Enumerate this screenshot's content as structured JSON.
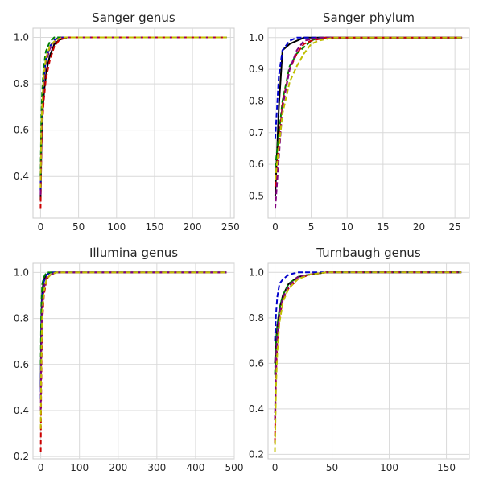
{
  "chart_data": [
    {
      "type": "line",
      "title": "Sanger genus",
      "xlim": [
        -10,
        255
      ],
      "ylim": [
        0.22,
        1.04
      ],
      "xticks": [
        0,
        50,
        100,
        150,
        200,
        250
      ],
      "yticks": [
        0.4,
        0.6,
        0.8,
        1.0
      ],
      "xtick_labels": [
        "0",
        "50",
        "100",
        "150",
        "200",
        "250"
      ],
      "ytick_labels": [
        "0.4",
        "0.6",
        "0.8",
        "1.0"
      ],
      "grid": true,
      "series": [
        {
          "color": "#000000",
          "dash": false,
          "x": [
            0,
            1,
            2,
            3,
            5,
            8,
            12,
            18,
            25,
            35,
            50,
            100,
            245
          ],
          "y": [
            0.3,
            0.52,
            0.62,
            0.7,
            0.78,
            0.86,
            0.92,
            0.97,
            0.99,
            1.0,
            1.0,
            1.0,
            1.0
          ]
        },
        {
          "color": "#0000cc",
          "dash": true,
          "x": [
            0,
            1,
            2,
            4,
            7,
            12,
            18,
            25,
            35,
            245
          ],
          "y": [
            0.34,
            0.6,
            0.7,
            0.82,
            0.9,
            0.96,
            0.99,
            1.0,
            1.0,
            1.0
          ]
        },
        {
          "color": "#008000",
          "dash": true,
          "x": [
            0,
            1,
            2,
            4,
            7,
            12,
            18,
            25,
            245
          ],
          "y": [
            0.4,
            0.66,
            0.76,
            0.87,
            0.94,
            0.98,
            1.0,
            1.0,
            1.0
          ]
        },
        {
          "color": "#cc0000",
          "dash": true,
          "x": [
            0,
            1,
            2,
            4,
            7,
            12,
            18,
            25,
            35,
            245
          ],
          "y": [
            0.26,
            0.5,
            0.6,
            0.72,
            0.82,
            0.9,
            0.96,
            0.99,
            1.0,
            1.0
          ]
        },
        {
          "color": "#800080",
          "dash": true,
          "x": [
            0,
            1,
            2,
            4,
            7,
            12,
            18,
            28,
            245
          ],
          "y": [
            0.32,
            0.56,
            0.67,
            0.8,
            0.89,
            0.95,
            0.98,
            1.0,
            1.0
          ]
        },
        {
          "color": "#bfbf00",
          "dash": true,
          "x": [
            0,
            1,
            2,
            4,
            7,
            12,
            20,
            30,
            245
          ],
          "y": [
            0.35,
            0.6,
            0.7,
            0.83,
            0.91,
            0.96,
            0.99,
            1.0,
            1.0
          ]
        }
      ]
    },
    {
      "type": "line",
      "title": "Sanger phylum",
      "xlim": [
        -1,
        27
      ],
      "ylim": [
        0.43,
        1.03
      ],
      "xticks": [
        0,
        5,
        10,
        15,
        20,
        25
      ],
      "yticks": [
        0.5,
        0.6,
        0.7,
        0.8,
        0.9,
        1.0
      ],
      "xtick_labels": [
        "0",
        "5",
        "10",
        "15",
        "20",
        "25"
      ],
      "ytick_labels": [
        "0.5",
        "0.6",
        "0.7",
        "0.8",
        "0.9",
        "1.0"
      ],
      "grid": true,
      "series": [
        {
          "color": "#000000",
          "dash": false,
          "x": [
            0,
            0.5,
            1,
            2,
            3,
            4,
            5,
            7,
            26
          ],
          "y": [
            0.5,
            0.78,
            0.96,
            0.98,
            0.99,
            1.0,
            1.0,
            1.0,
            1.0
          ]
        },
        {
          "color": "#0000cc",
          "dash": true,
          "x": [
            0,
            0.5,
            1,
            2,
            3,
            5,
            26
          ],
          "y": [
            0.68,
            0.88,
            0.96,
            0.99,
            1.0,
            1.0,
            1.0
          ]
        },
        {
          "color": "#008000",
          "dash": true,
          "x": [
            0,
            1,
            2,
            3,
            4,
            5,
            6,
            26
          ],
          "y": [
            0.59,
            0.8,
            0.91,
            0.95,
            0.97,
            0.99,
            1.0,
            1.0
          ]
        },
        {
          "color": "#cc0000",
          "dash": true,
          "x": [
            0,
            1,
            2,
            3,
            4,
            5,
            7,
            26
          ],
          "y": [
            0.53,
            0.79,
            0.9,
            0.95,
            0.98,
            0.99,
            1.0,
            1.0
          ]
        },
        {
          "color": "#800080",
          "dash": true,
          "x": [
            0,
            0.5,
            1,
            2,
            3,
            4,
            6,
            26
          ],
          "y": [
            0.46,
            0.62,
            0.78,
            0.9,
            0.96,
            0.99,
            1.0,
            1.0
          ]
        },
        {
          "color": "#bfbf00",
          "dash": true,
          "x": [
            0,
            1,
            2,
            3,
            4,
            5,
            6,
            8,
            26
          ],
          "y": [
            0.55,
            0.76,
            0.86,
            0.91,
            0.95,
            0.98,
            0.99,
            1.0,
            1.0
          ]
        }
      ]
    },
    {
      "type": "line",
      "title": "Illumina genus",
      "xlim": [
        -20,
        500
      ],
      "ylim": [
        0.19,
        1.04
      ],
      "xticks": [
        0,
        100,
        200,
        300,
        400,
        500
      ],
      "yticks": [
        0.2,
        0.4,
        0.6,
        0.8,
        1.0
      ],
      "xtick_labels": [
        "0",
        "100",
        "200",
        "300",
        "400",
        "500"
      ],
      "ytick_labels": [
        "0.2",
        "0.4",
        "0.6",
        "0.8",
        "1.0"
      ],
      "grid": true,
      "series": [
        {
          "color": "#000000",
          "dash": false,
          "x": [
            0,
            1,
            2,
            4,
            8,
            15,
            25,
            40,
            480
          ],
          "y": [
            0.5,
            0.72,
            0.82,
            0.92,
            0.97,
            0.99,
            1.0,
            1.0,
            1.0
          ]
        },
        {
          "color": "#0000cc",
          "dash": true,
          "x": [
            0,
            1,
            2,
            4,
            8,
            15,
            25,
            480
          ],
          "y": [
            0.45,
            0.7,
            0.8,
            0.9,
            0.96,
            0.99,
            1.0,
            1.0
          ]
        },
        {
          "color": "#008000",
          "dash": true,
          "x": [
            0,
            1,
            2,
            4,
            8,
            15,
            25,
            480
          ],
          "y": [
            0.6,
            0.8,
            0.88,
            0.95,
            0.98,
            1.0,
            1.0,
            1.0
          ]
        },
        {
          "color": "#cc0000",
          "dash": true,
          "x": [
            0,
            1,
            2,
            4,
            8,
            15,
            25,
            40,
            480
          ],
          "y": [
            0.22,
            0.45,
            0.6,
            0.78,
            0.9,
            0.97,
            0.99,
            1.0,
            1.0
          ]
        },
        {
          "color": "#800080",
          "dash": true,
          "x": [
            0,
            1,
            2,
            4,
            8,
            15,
            25,
            40,
            480
          ],
          "y": [
            0.4,
            0.6,
            0.72,
            0.85,
            0.93,
            0.98,
            0.99,
            1.0,
            1.0
          ]
        },
        {
          "color": "#bfbf00",
          "dash": true,
          "x": [
            0,
            1,
            2,
            4,
            8,
            15,
            25,
            40,
            480
          ],
          "y": [
            0.32,
            0.55,
            0.68,
            0.82,
            0.92,
            0.97,
            0.99,
            1.0,
            1.0
          ]
        }
      ]
    },
    {
      "type": "line",
      "title": "Turnbaugh genus",
      "xlim": [
        -6,
        170
      ],
      "ylim": [
        0.18,
        1.04
      ],
      "xticks": [
        0,
        50,
        100,
        150
      ],
      "yticks": [
        0.2,
        0.4,
        0.6,
        0.8,
        1.0
      ],
      "xtick_labels": [
        "0",
        "50",
        "100",
        "150"
      ],
      "ytick_labels": [
        "0.2",
        "0.4",
        "0.6",
        "0.8",
        "1.0"
      ],
      "grid": true,
      "series": [
        {
          "color": "#000000",
          "dash": false,
          "x": [
            0,
            1,
            2,
            4,
            7,
            12,
            20,
            30,
            45,
            163
          ],
          "y": [
            0.6,
            0.7,
            0.76,
            0.84,
            0.9,
            0.95,
            0.98,
            0.99,
            1.0,
            1.0
          ]
        },
        {
          "color": "#0000cc",
          "dash": true,
          "x": [
            0,
            1,
            2,
            4,
            7,
            12,
            20,
            30,
            163
          ],
          "y": [
            0.7,
            0.82,
            0.89,
            0.95,
            0.97,
            0.99,
            1.0,
            1.0,
            1.0
          ]
        },
        {
          "color": "#008000",
          "dash": true,
          "x": [
            0,
            1,
            2,
            4,
            7,
            12,
            20,
            30,
            45,
            163
          ],
          "y": [
            0.55,
            0.68,
            0.75,
            0.84,
            0.9,
            0.95,
            0.98,
            0.99,
            1.0,
            1.0
          ]
        },
        {
          "color": "#cc0000",
          "dash": true,
          "x": [
            0,
            1,
            2,
            4,
            7,
            12,
            20,
            30,
            45,
            163
          ],
          "y": [
            0.25,
            0.55,
            0.68,
            0.8,
            0.88,
            0.93,
            0.97,
            0.99,
            1.0,
            1.0
          ]
        },
        {
          "color": "#800080",
          "dash": true,
          "x": [
            0,
            1,
            2,
            4,
            7,
            12,
            20,
            30,
            45,
            163
          ],
          "y": [
            0.35,
            0.62,
            0.72,
            0.82,
            0.89,
            0.94,
            0.98,
            0.99,
            1.0,
            1.0
          ]
        },
        {
          "color": "#bfbf00",
          "dash": true,
          "x": [
            0,
            1,
            2,
            4,
            7,
            12,
            20,
            30,
            45,
            163
          ],
          "y": [
            0.21,
            0.5,
            0.64,
            0.78,
            0.87,
            0.93,
            0.97,
            0.99,
            1.0,
            1.0
          ]
        }
      ]
    }
  ]
}
